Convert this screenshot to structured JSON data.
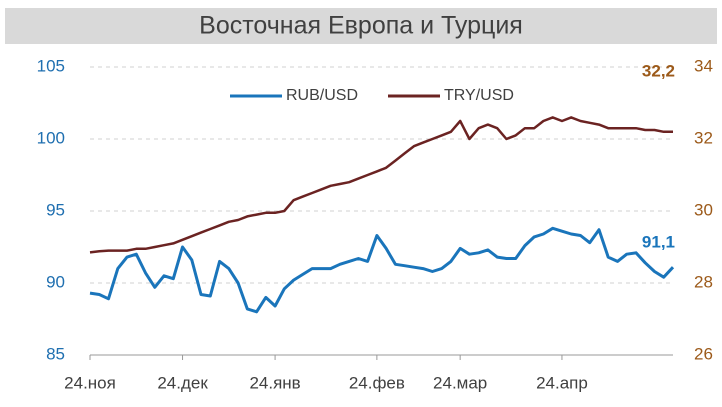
{
  "chart_data": {
    "type": "line",
    "title": "Восточная Европа и Турция",
    "categories": [
      "24.ноя",
      null,
      null,
      null,
      null,
      null,
      null,
      null,
      null,
      null,
      "24.дек",
      null,
      null,
      null,
      null,
      null,
      null,
      null,
      null,
      null,
      "24.янв",
      null,
      null,
      null,
      null,
      null,
      null,
      null,
      null,
      null,
      null,
      "24.фев",
      null,
      null,
      null,
      null,
      null,
      null,
      null,
      null,
      "24.мар",
      null,
      null,
      null,
      null,
      null,
      null,
      null,
      null,
      null,
      null,
      "24.апр",
      null,
      null,
      null,
      null,
      null,
      null,
      null,
      null,
      null,
      null,
      null,
      null
    ],
    "series": [
      {
        "name": "RUB/USD",
        "color": "#1a75bb",
        "axis": "y",
        "values": [
          89.3,
          89.2,
          88.9,
          91.0,
          91.8,
          92.0,
          90.7,
          89.7,
          90.5,
          90.3,
          92.5,
          91.6,
          89.2,
          89.1,
          91.5,
          91.0,
          90.0,
          88.2,
          88.0,
          89.0,
          88.4,
          89.6,
          90.2,
          90.6,
          91.0,
          91.0,
          91.0,
          91.3,
          91.5,
          91.7,
          91.5,
          93.3,
          92.4,
          91.3,
          91.2,
          91.1,
          91.0,
          90.8,
          91.0,
          91.5,
          92.4,
          92.0,
          92.1,
          92.3,
          91.8,
          91.7,
          91.7,
          92.6,
          93.2,
          93.4,
          93.8,
          93.6,
          93.4,
          93.3,
          92.8,
          93.7,
          91.8,
          91.5,
          92.0,
          92.1,
          91.4,
          90.8,
          90.4,
          91.1
        ],
        "value_labels": [
          null,
          null,
          null,
          null,
          null,
          null,
          null,
          null,
          null,
          null,
          null,
          null,
          null,
          null,
          null,
          null,
          null,
          null,
          null,
          null,
          null,
          null,
          null,
          null,
          null,
          null,
          null,
          null,
          null,
          null,
          null,
          null,
          null,
          null,
          null,
          null,
          null,
          null,
          null,
          null,
          null,
          null,
          null,
          null,
          null,
          null,
          null,
          null,
          null,
          null,
          null,
          null,
          null,
          null,
          null,
          null,
          null,
          null,
          null,
          null,
          null,
          null,
          null,
          "91,1"
        ]
      },
      {
        "name": "TRY/USD",
        "color": "#6b2322",
        "axis": "y2",
        "values": [
          28.85,
          28.88,
          28.9,
          28.9,
          28.9,
          28.95,
          28.95,
          29.0,
          29.05,
          29.1,
          29.2,
          29.3,
          29.4,
          29.5,
          29.6,
          29.7,
          29.75,
          29.85,
          29.9,
          29.95,
          29.95,
          30.0,
          30.3,
          30.4,
          30.5,
          30.6,
          30.7,
          30.75,
          30.8,
          30.9,
          31.0,
          31.1,
          31.2,
          31.4,
          31.6,
          31.8,
          31.9,
          32.0,
          32.1,
          32.2,
          32.5,
          32.0,
          32.3,
          32.4,
          32.3,
          32.0,
          32.1,
          32.3,
          32.3,
          32.5,
          32.6,
          32.5,
          32.6,
          32.5,
          32.45,
          32.4,
          32.3,
          32.3,
          32.3,
          32.3,
          32.25,
          32.25,
          32.2,
          32.2
        ],
        "value_labels": [
          null,
          null,
          null,
          null,
          null,
          null,
          null,
          null,
          null,
          null,
          null,
          null,
          null,
          null,
          null,
          null,
          null,
          null,
          null,
          null,
          null,
          null,
          null,
          null,
          null,
          null,
          null,
          null,
          null,
          null,
          null,
          null,
          null,
          null,
          null,
          null,
          null,
          null,
          null,
          null,
          null,
          null,
          null,
          null,
          null,
          null,
          null,
          null,
          null,
          null,
          null,
          null,
          null,
          null,
          null,
          null,
          null,
          null,
          null,
          null,
          null,
          null,
          null,
          "32,2"
        ]
      }
    ],
    "ylim": [
      85,
      105
    ],
    "yticks": [
      85,
      90,
      95,
      100,
      105
    ],
    "y2lim": [
      26,
      34
    ],
    "y2ticks": [
      26,
      28,
      30,
      32,
      34
    ],
    "grid": true,
    "legend": "top"
  }
}
